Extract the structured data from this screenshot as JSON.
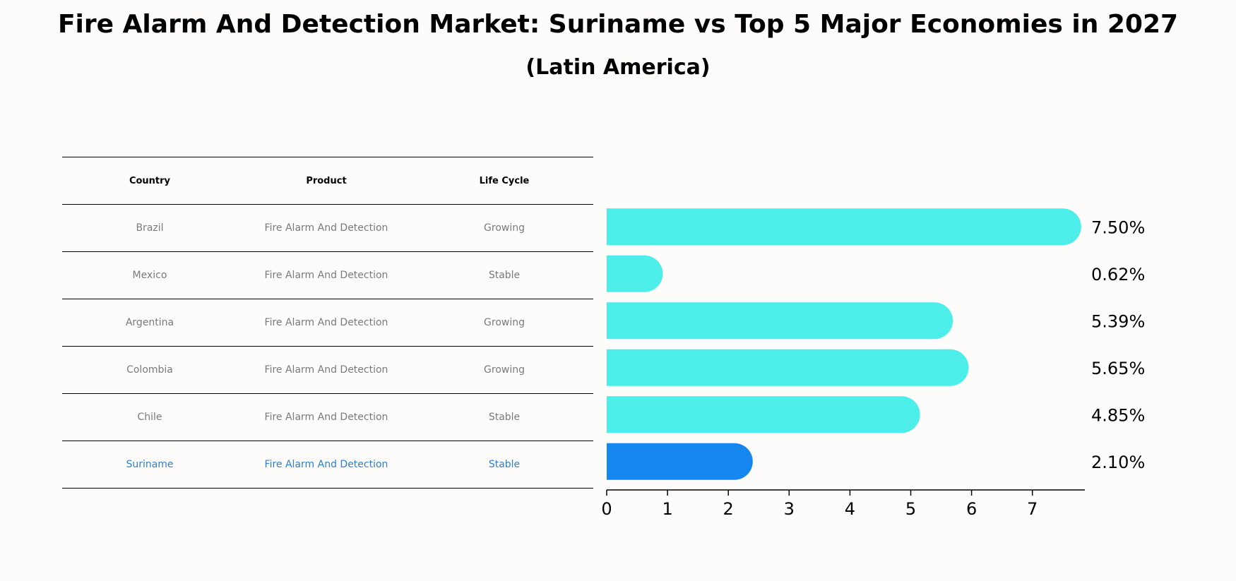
{
  "header": {
    "title": "Fire Alarm And Detection Market: Suriname vs Top 5 Major Economies in 2027",
    "subtitle": "(Latin America)"
  },
  "table": {
    "columns": [
      "Country",
      "Product",
      "Life Cycle"
    ],
    "rows": [
      {
        "country": "Brazil",
        "product": "Fire Alarm And Detection",
        "lifecycle": "Growing"
      },
      {
        "country": "Mexico",
        "product": "Fire Alarm And Detection",
        "lifecycle": "Stable"
      },
      {
        "country": "Argentina",
        "product": "Fire Alarm And Detection",
        "lifecycle": "Growing"
      },
      {
        "country": "Colombia",
        "product": "Fire Alarm And Detection",
        "lifecycle": "Growing"
      },
      {
        "country": "Chile",
        "product": "Fire Alarm And Detection",
        "lifecycle": "Stable"
      },
      {
        "country": "Suriname",
        "product": "Fire Alarm And Detection",
        "lifecycle": "Stable"
      }
    ]
  },
  "chart_data": {
    "type": "bar",
    "orientation": "horizontal",
    "categories": [
      "Brazil",
      "Mexico",
      "Argentina",
      "Colombia",
      "Chile",
      "Suriname"
    ],
    "values": [
      7.5,
      0.62,
      5.39,
      5.65,
      4.85,
      2.1
    ],
    "value_labels": [
      "7.50%",
      "0.62%",
      "5.39%",
      "5.65%",
      "4.85%",
      "2.10%"
    ],
    "xticks": [
      0,
      1,
      2,
      3,
      4,
      5,
      6,
      7
    ],
    "xlim": [
      0,
      7.9
    ],
    "highlight_index": 5,
    "colors": {
      "default": "#4deeea",
      "highlight": "#1787f0"
    },
    "grid": false
  }
}
